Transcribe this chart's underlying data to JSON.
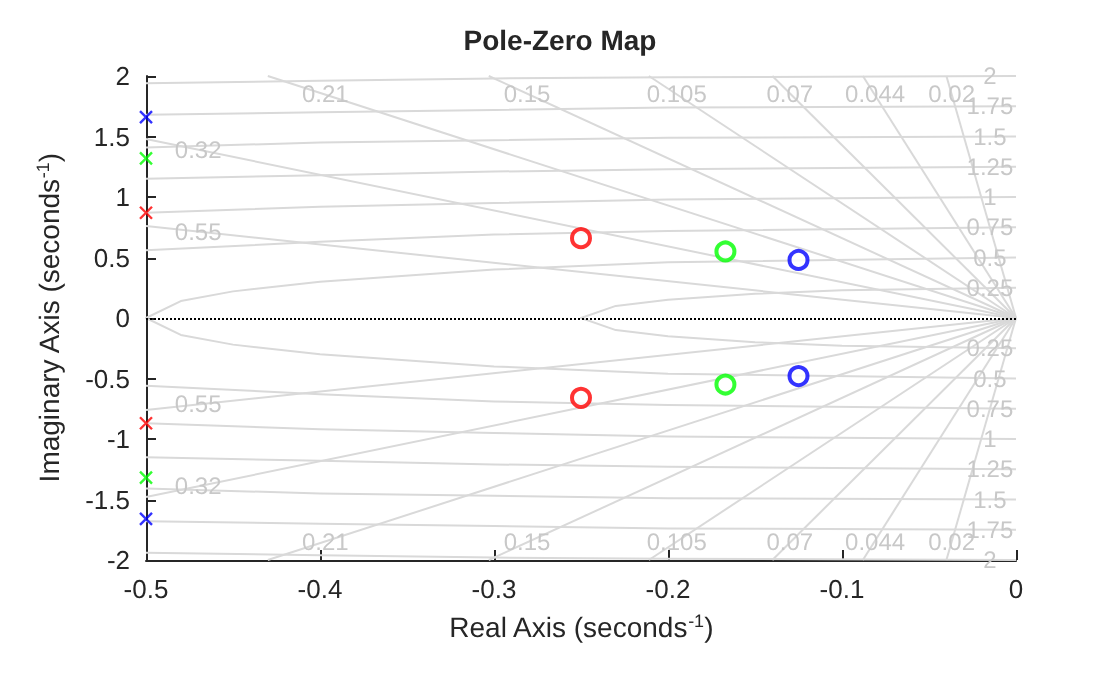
{
  "chart_data": {
    "type": "scatter",
    "title": "Pole-Zero Map",
    "xlabel": "Real Axis (seconds$^{-1}$)",
    "ylabel": "Imaginary Axis (seconds$^{-1}$)",
    "xlim": [
      -0.5,
      0
    ],
    "xticks": [
      -0.5,
      -0.4,
      -0.3,
      -0.2,
      -0.1,
      0
    ],
    "ylim": [
      -2,
      2
    ],
    "yticks": [
      -2,
      -1.5,
      -1,
      -0.5,
      0,
      0.5,
      1,
      1.5,
      2
    ],
    "ref_lines": [
      {
        "axis": "y",
        "value": 0,
        "color": "#000000",
        "line_style": "dotted"
      }
    ],
    "series": [
      {
        "type": "line",
        "marker": "none",
        "color": "#d9d9d9",
        "x": [
          -0.04,
          0
        ],
        "values": [
          2,
          0
        ]
      },
      {
        "type": "line",
        "marker": "none",
        "color": "#d9d9d9",
        "x": [
          0,
          -0.04
        ],
        "values": [
          0,
          -2
        ]
      },
      {
        "type": "line",
        "marker": "none",
        "color": "#d9d9d9",
        "x": [
          -0.088,
          0
        ],
        "values": [
          2,
          0
        ]
      },
      {
        "type": "line",
        "marker": "none",
        "color": "#d9d9d9",
        "x": [
          0,
          -0.088
        ],
        "values": [
          0,
          -2
        ]
      },
      {
        "type": "line",
        "marker": "none",
        "color": "#d9d9d9",
        "x": [
          -0.14,
          0
        ],
        "values": [
          2,
          0
        ]
      },
      {
        "type": "line",
        "marker": "none",
        "color": "#d9d9d9",
        "x": [
          0,
          -0.14
        ],
        "values": [
          0,
          -2
        ]
      },
      {
        "type": "line",
        "marker": "none",
        "color": "#d9d9d9",
        "x": [
          -0.211,
          0
        ],
        "values": [
          2,
          0
        ]
      },
      {
        "type": "line",
        "marker": "none",
        "color": "#d9d9d9",
        "x": [
          0,
          -0.211
        ],
        "values": [
          0,
          -2
        ]
      },
      {
        "type": "line",
        "marker": "none",
        "color": "#d9d9d9",
        "x": [
          -0.303,
          0
        ],
        "values": [
          2,
          0
        ]
      },
      {
        "type": "line",
        "marker": "none",
        "color": "#d9d9d9",
        "x": [
          0,
          -0.303
        ],
        "values": [
          0,
          -2
        ]
      },
      {
        "type": "line",
        "marker": "none",
        "color": "#d9d9d9",
        "x": [
          -0.43,
          0
        ],
        "values": [
          2,
          0
        ]
      },
      {
        "type": "line",
        "marker": "none",
        "color": "#d9d9d9",
        "x": [
          0,
          -0.43
        ],
        "values": [
          0,
          -2
        ]
      },
      {
        "type": "line",
        "marker": "none",
        "color": "#d9d9d9",
        "x": [
          -0.5,
          0
        ],
        "values": [
          1.48,
          0
        ]
      },
      {
        "type": "line",
        "marker": "none",
        "color": "#d9d9d9",
        "x": [
          0,
          -0.5
        ],
        "values": [
          0,
          -1.48
        ]
      },
      {
        "type": "line",
        "marker": "none",
        "color": "#d9d9d9",
        "x": [
          -0.5,
          0
        ],
        "values": [
          0.76,
          0
        ]
      },
      {
        "type": "line",
        "marker": "none",
        "color": "#d9d9d9",
        "x": [
          0,
          -0.5
        ],
        "values": [
          0,
          -0.76
        ]
      },
      {
        "type": "line",
        "marker": "none",
        "color": "#d9d9d9",
        "x": [
          0,
          -0.2,
          -0.3,
          -0.4,
          -0.5
        ],
        "values": [
          2,
          1.99,
          1.98,
          1.96,
          1.94
        ]
      },
      {
        "type": "line",
        "marker": "none",
        "color": "#d9d9d9",
        "x": [
          0,
          -0.2,
          -0.3,
          -0.4,
          -0.5
        ],
        "values": [
          -2,
          -1.99,
          -1.98,
          -1.96,
          -1.94
        ]
      },
      {
        "type": "line",
        "marker": "none",
        "color": "#d9d9d9",
        "x": [
          0,
          -0.2,
          -0.3,
          -0.4,
          -0.5
        ],
        "values": [
          1.75,
          1.74,
          1.72,
          1.7,
          1.68
        ]
      },
      {
        "type": "line",
        "marker": "none",
        "color": "#d9d9d9",
        "x": [
          0,
          -0.2,
          -0.3,
          -0.4,
          -0.5
        ],
        "values": [
          -1.75,
          -1.74,
          -1.72,
          -1.7,
          -1.68
        ]
      },
      {
        "type": "line",
        "marker": "none",
        "color": "#d9d9d9",
        "x": [
          0,
          -0.2,
          -0.3,
          -0.4,
          -0.5
        ],
        "values": [
          1.5,
          1.49,
          1.47,
          1.45,
          1.41
        ]
      },
      {
        "type": "line",
        "marker": "none",
        "color": "#d9d9d9",
        "x": [
          0,
          -0.2,
          -0.3,
          -0.4,
          -0.5
        ],
        "values": [
          -1.5,
          -1.49,
          -1.47,
          -1.45,
          -1.41
        ]
      },
      {
        "type": "line",
        "marker": "none",
        "color": "#d9d9d9",
        "x": [
          0,
          -0.2,
          -0.3,
          -0.4,
          -0.5
        ],
        "values": [
          1.25,
          1.23,
          1.21,
          1.18,
          1.15
        ]
      },
      {
        "type": "line",
        "marker": "none",
        "color": "#d9d9d9",
        "x": [
          0,
          -0.2,
          -0.3,
          -0.4,
          -0.5
        ],
        "values": [
          -1.25,
          -1.23,
          -1.21,
          -1.18,
          -1.15
        ]
      },
      {
        "type": "line",
        "marker": "none",
        "color": "#d9d9d9",
        "x": [
          0,
          -0.2,
          -0.3,
          -0.4,
          -0.5
        ],
        "values": [
          1,
          0.98,
          0.95,
          0.92,
          0.87
        ]
      },
      {
        "type": "line",
        "marker": "none",
        "color": "#d9d9d9",
        "x": [
          0,
          -0.2,
          -0.3,
          -0.4,
          -0.5
        ],
        "values": [
          -1,
          -0.98,
          -0.95,
          -0.92,
          -0.87
        ]
      },
      {
        "type": "line",
        "marker": "none",
        "color": "#d9d9d9",
        "x": [
          0,
          -0.2,
          -0.3,
          -0.4,
          -0.5
        ],
        "values": [
          0.75,
          0.72,
          0.69,
          0.63,
          0.56
        ]
      },
      {
        "type": "line",
        "marker": "none",
        "color": "#d9d9d9",
        "x": [
          0,
          -0.2,
          -0.3,
          -0.4,
          -0.5
        ],
        "values": [
          -0.75,
          -0.72,
          -0.69,
          -0.63,
          -0.56
        ]
      },
      {
        "type": "line",
        "marker": "none",
        "color": "#d9d9d9",
        "x": [
          0,
          -0.2,
          -0.3,
          -0.4,
          -0.45,
          -0.48,
          -0.5,
          -0.48,
          -0.45,
          -0.4,
          -0.3,
          -0.2,
          0
        ],
        "values": [
          0.5,
          0.46,
          0.4,
          0.3,
          0.22,
          0.14,
          0,
          -0.14,
          -0.22,
          -0.3,
          -0.4,
          -0.46,
          -0.5
        ]
      },
      {
        "type": "line",
        "marker": "none",
        "color": "#d9d9d9",
        "x": [
          0,
          -0.1,
          -0.15,
          -0.2,
          -0.23,
          -0.25,
          -0.23,
          -0.2,
          -0.15,
          -0.1,
          0
        ],
        "values": [
          0.25,
          0.23,
          0.2,
          0.15,
          0.1,
          0,
          -0.1,
          -0.15,
          -0.2,
          -0.23,
          -0.25
        ]
      },
      {
        "marker": "cross",
        "color": "#0000ff",
        "x": [
          -0.5,
          -0.5
        ],
        "values": [
          1.66,
          -1.66
        ]
      },
      {
        "marker": "cross",
        "color": "#00ff00",
        "x": [
          -0.5,
          -0.5
        ],
        "values": [
          1.32,
          -1.32
        ]
      },
      {
        "marker": "cross",
        "color": "#ff0000",
        "x": [
          -0.5,
          -0.5
        ],
        "values": [
          0.87,
          -0.87
        ]
      },
      {
        "marker": "circle",
        "color": "#ff0000",
        "x": [
          -0.25,
          -0.25
        ],
        "values": [
          0.66,
          -0.66
        ]
      },
      {
        "marker": "circle",
        "color": "#00ff00",
        "x": [
          -0.167,
          -0.167
        ],
        "values": [
          0.55,
          -0.55
        ]
      },
      {
        "marker": "circle",
        "color": "#0000ff",
        "x": [
          -0.125,
          -0.125
        ],
        "values": [
          0.48,
          -0.48
        ]
      }
    ],
    "annotations": [
      {
        "text": "0.21",
        "x": -0.397,
        "y": 1.85
      },
      {
        "text": "0.15",
        "x": -0.281,
        "y": 1.85
      },
      {
        "text": "0.105",
        "x": -0.195,
        "y": 1.85
      },
      {
        "text": "0.07",
        "x": -0.13,
        "y": 1.85
      },
      {
        "text": "0.044",
        "x": -0.081,
        "y": 1.85
      },
      {
        "text": "0.02",
        "x": -0.037,
        "y": 1.85
      },
      {
        "text": "0.32",
        "x": -0.47,
        "y": 1.39
      },
      {
        "text": "0.55",
        "x": -0.47,
        "y": 0.71
      },
      {
        "text": "0.21",
        "x": -0.397,
        "y": -1.85
      },
      {
        "text": "0.15",
        "x": -0.281,
        "y": -1.85
      },
      {
        "text": "0.105",
        "x": -0.195,
        "y": -1.85
      },
      {
        "text": "0.07",
        "x": -0.13,
        "y": -1.85
      },
      {
        "text": "0.044",
        "x": -0.081,
        "y": -1.85
      },
      {
        "text": "0.02",
        "x": -0.037,
        "y": -1.85
      },
      {
        "text": "0.32",
        "x": -0.47,
        "y": -1.39
      },
      {
        "text": "0.55",
        "x": -0.47,
        "y": -0.71
      },
      {
        "text": "2",
        "x": -0.015,
        "y": 2
      },
      {
        "text": "1.75",
        "x": -0.015,
        "y": 1.75
      },
      {
        "text": "1.5",
        "x": -0.015,
        "y": 1.5
      },
      {
        "text": "1.25",
        "x": -0.015,
        "y": 1.25
      },
      {
        "text": "1",
        "x": -0.015,
        "y": 1
      },
      {
        "text": "0.75",
        "x": -0.015,
        "y": 0.75
      },
      {
        "text": "0.5",
        "x": -0.015,
        "y": 0.5
      },
      {
        "text": "0.25",
        "x": -0.015,
        "y": 0.25
      },
      {
        "text": "0.25",
        "x": -0.015,
        "y": -0.25
      },
      {
        "text": "0.5",
        "x": -0.015,
        "y": -0.5
      },
      {
        "text": "0.75",
        "x": -0.015,
        "y": -0.75
      },
      {
        "text": "1",
        "x": -0.015,
        "y": -1
      },
      {
        "text": "1.25",
        "x": -0.015,
        "y": -1.25
      },
      {
        "text": "1.5",
        "x": -0.015,
        "y": -1.5
      },
      {
        "text": "1.75",
        "x": -0.015,
        "y": -1.75
      },
      {
        "text": "2",
        "x": -0.015,
        "y": -2
      }
    ]
  }
}
